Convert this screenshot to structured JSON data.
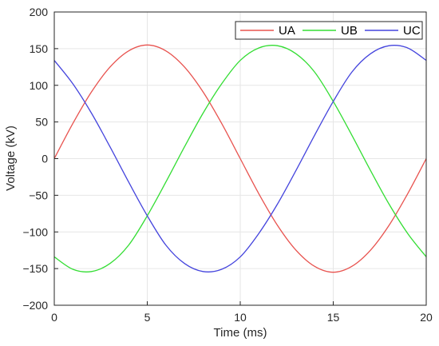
{
  "chart_data": {
    "type": "line",
    "xlabel": "Time (ms)",
    "ylabel": "Voltage (kV)",
    "xlim": [
      0,
      20
    ],
    "ylim": [
      -200,
      200
    ],
    "xticks": [
      0,
      5,
      10,
      15,
      20
    ],
    "yticks": [
      -200,
      -150,
      -100,
      -50,
      0,
      50,
      100,
      150,
      200
    ],
    "xtick_labels": [
      "0",
      "5",
      "10",
      "15",
      "20"
    ],
    "ytick_labels": [
      "−200",
      "−150",
      "−100",
      "−50",
      "0",
      "50",
      "100",
      "150",
      "200"
    ],
    "grid": true,
    "legend": {
      "placement": "top-right",
      "orientation": "horizontal"
    },
    "series": [
      {
        "name": "UA",
        "color": "#e8534f",
        "x": [
          0,
          1,
          2,
          3,
          4,
          5,
          6,
          7,
          8,
          9,
          10,
          11,
          12,
          13,
          14,
          15,
          16,
          17,
          18,
          19,
          20
        ],
        "y": [
          0,
          48,
          91,
          125,
          147,
          155,
          147,
          125,
          91,
          48,
          0,
          -48,
          -91,
          -125,
          -147,
          -155,
          -147,
          -125,
          -91,
          -48,
          0
        ]
      },
      {
        "name": "UB",
        "color": "#33dd33",
        "x": [
          0,
          1,
          2,
          3,
          4,
          5,
          6,
          7,
          8,
          9,
          10,
          11,
          12,
          13,
          14,
          15,
          16,
          17,
          18,
          19,
          20
        ],
        "y": [
          -134,
          -151,
          -154,
          -143,
          -118,
          -78,
          -32,
          16,
          62,
          102,
          134,
          151,
          154,
          143,
          118,
          78,
          32,
          -16,
          -62,
          -102,
          -134
        ]
      },
      {
        "name": "UC",
        "color": "#4444dd",
        "x": [
          0,
          1,
          2,
          3,
          4,
          5,
          6,
          7,
          8,
          9,
          10,
          11,
          12,
          13,
          14,
          15,
          16,
          17,
          18,
          19,
          20
        ],
        "y": [
          134,
          102,
          62,
          16,
          -32,
          -78,
          -118,
          -143,
          -154,
          -151,
          -134,
          -102,
          -62,
          -16,
          32,
          78,
          118,
          143,
          154,
          151,
          134
        ]
      }
    ]
  }
}
